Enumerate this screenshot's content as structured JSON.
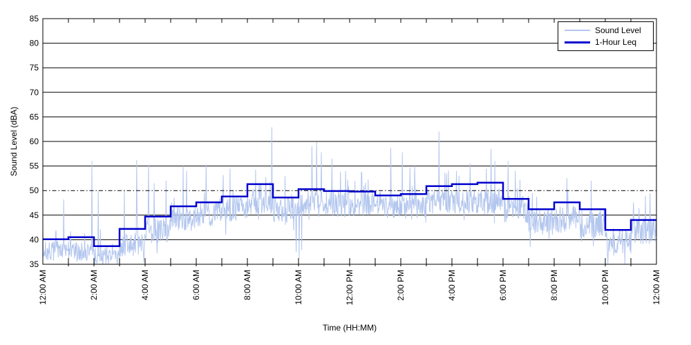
{
  "figure": {
    "background": "#ffffff",
    "axis_color": "#000000"
  },
  "legend": {
    "items": [
      "Sound Level",
      "1-Hour Leq"
    ]
  },
  "chart_data": {
    "type": "line",
    "title": "",
    "xlabel": "Time (HH:MM)",
    "ylabel": "Sound Level (dBA)",
    "ylim": [
      35,
      85
    ],
    "ytick_step": 5,
    "y_tick_labels": [
      "35",
      "40",
      "45",
      "50",
      "55",
      "60",
      "65",
      "70",
      "75",
      "80",
      "85"
    ],
    "x_minutes_range": [
      0,
      1440
    ],
    "x_tick_interval_minutes": 60,
    "x_label_interval_minutes": 120,
    "x_tick_labels": [
      "12:00 AM",
      "2:00 AM",
      "4:00 AM",
      "6:00 AM",
      "8:00 AM",
      "10:00 AM",
      "12:00 PM",
      "2:00 PM",
      "4:00 PM",
      "6:00 PM",
      "8:00 PM",
      "10:00 PM",
      "12:00 AM"
    ],
    "grid": "horizontal-solid",
    "legend_position": "top-right",
    "reference_line": {
      "value": 50,
      "style": "dash-dot",
      "color": "#000000"
    },
    "series": [
      {
        "name": "Sound Level",
        "color": "#b3c6ee",
        "line_width": 1,
        "sample_interval_minutes": 1,
        "description": "1-minute sound level trace, approximated by hourly envelope plus measured peaks",
        "noise_seed": 7,
        "hourly_base_dBA": [
          37.5,
          37.5,
          36.2,
          38.5,
          41.5,
          44.0,
          45.0,
          46.0,
          47.5,
          46.0,
          47.0,
          47.0,
          47.0,
          46.5,
          46.5,
          47.5,
          47.5,
          47.5,
          46.0,
          43.5,
          44.0,
          43.0,
          39.5,
          41.5
        ],
        "hourly_spread_dBA": [
          2.0,
          2.2,
          1.6,
          2.4,
          2.6,
          2.6,
          2.6,
          2.6,
          2.6,
          2.6,
          2.6,
          2.6,
          2.4,
          2.4,
          2.5,
          2.5,
          2.5,
          2.6,
          2.8,
          2.8,
          2.8,
          3.0,
          2.6,
          2.8
        ],
        "peaks": [
          [
            49,
            48.2
          ],
          [
            115,
            56.0
          ],
          [
            130,
            50.0
          ],
          [
            191,
            50.2
          ],
          [
            220,
            56.2
          ],
          [
            248,
            55.3
          ],
          [
            261,
            51.5
          ],
          [
            289,
            52.0
          ],
          [
            329,
            55.0
          ],
          [
            337,
            54.0
          ],
          [
            383,
            55.3
          ],
          [
            439,
            54.5
          ],
          [
            499,
            54.3
          ],
          [
            537,
            62.9
          ],
          [
            568,
            53.0
          ],
          [
            631,
            59.0
          ],
          [
            642,
            59.9
          ],
          [
            653,
            57.8
          ],
          [
            678,
            56.5
          ],
          [
            710,
            54.0
          ],
          [
            748,
            53.5
          ],
          [
            816,
            58.7
          ],
          [
            843,
            57.8
          ],
          [
            872,
            55.0
          ],
          [
            929,
            62.0
          ],
          [
            970,
            54.0
          ],
          [
            1002,
            55.5
          ],
          [
            1051,
            58.5
          ],
          [
            1060,
            56.0
          ],
          [
            1091,
            56.0
          ],
          [
            1108,
            54.0
          ],
          [
            1229,
            52.5
          ],
          [
            1286,
            52.0
          ],
          [
            1424,
            49.5
          ]
        ],
        "dips": [
          [
            594,
            37.5
          ],
          [
            601,
            36.2
          ],
          [
            607,
            37.9
          ]
        ]
      },
      {
        "name": "1-Hour Leq",
        "color": "#0000cc",
        "line_width": 2.5,
        "hourly_leq_dBA": [
          40.1,
          40.5,
          38.7,
          42.2,
          44.7,
          46.8,
          47.6,
          48.8,
          51.3,
          48.6,
          50.3,
          49.9,
          49.8,
          49.0,
          49.3,
          50.9,
          51.3,
          51.6,
          48.3,
          46.2,
          47.6,
          46.2,
          42.0,
          44.0
        ]
      }
    ]
  }
}
